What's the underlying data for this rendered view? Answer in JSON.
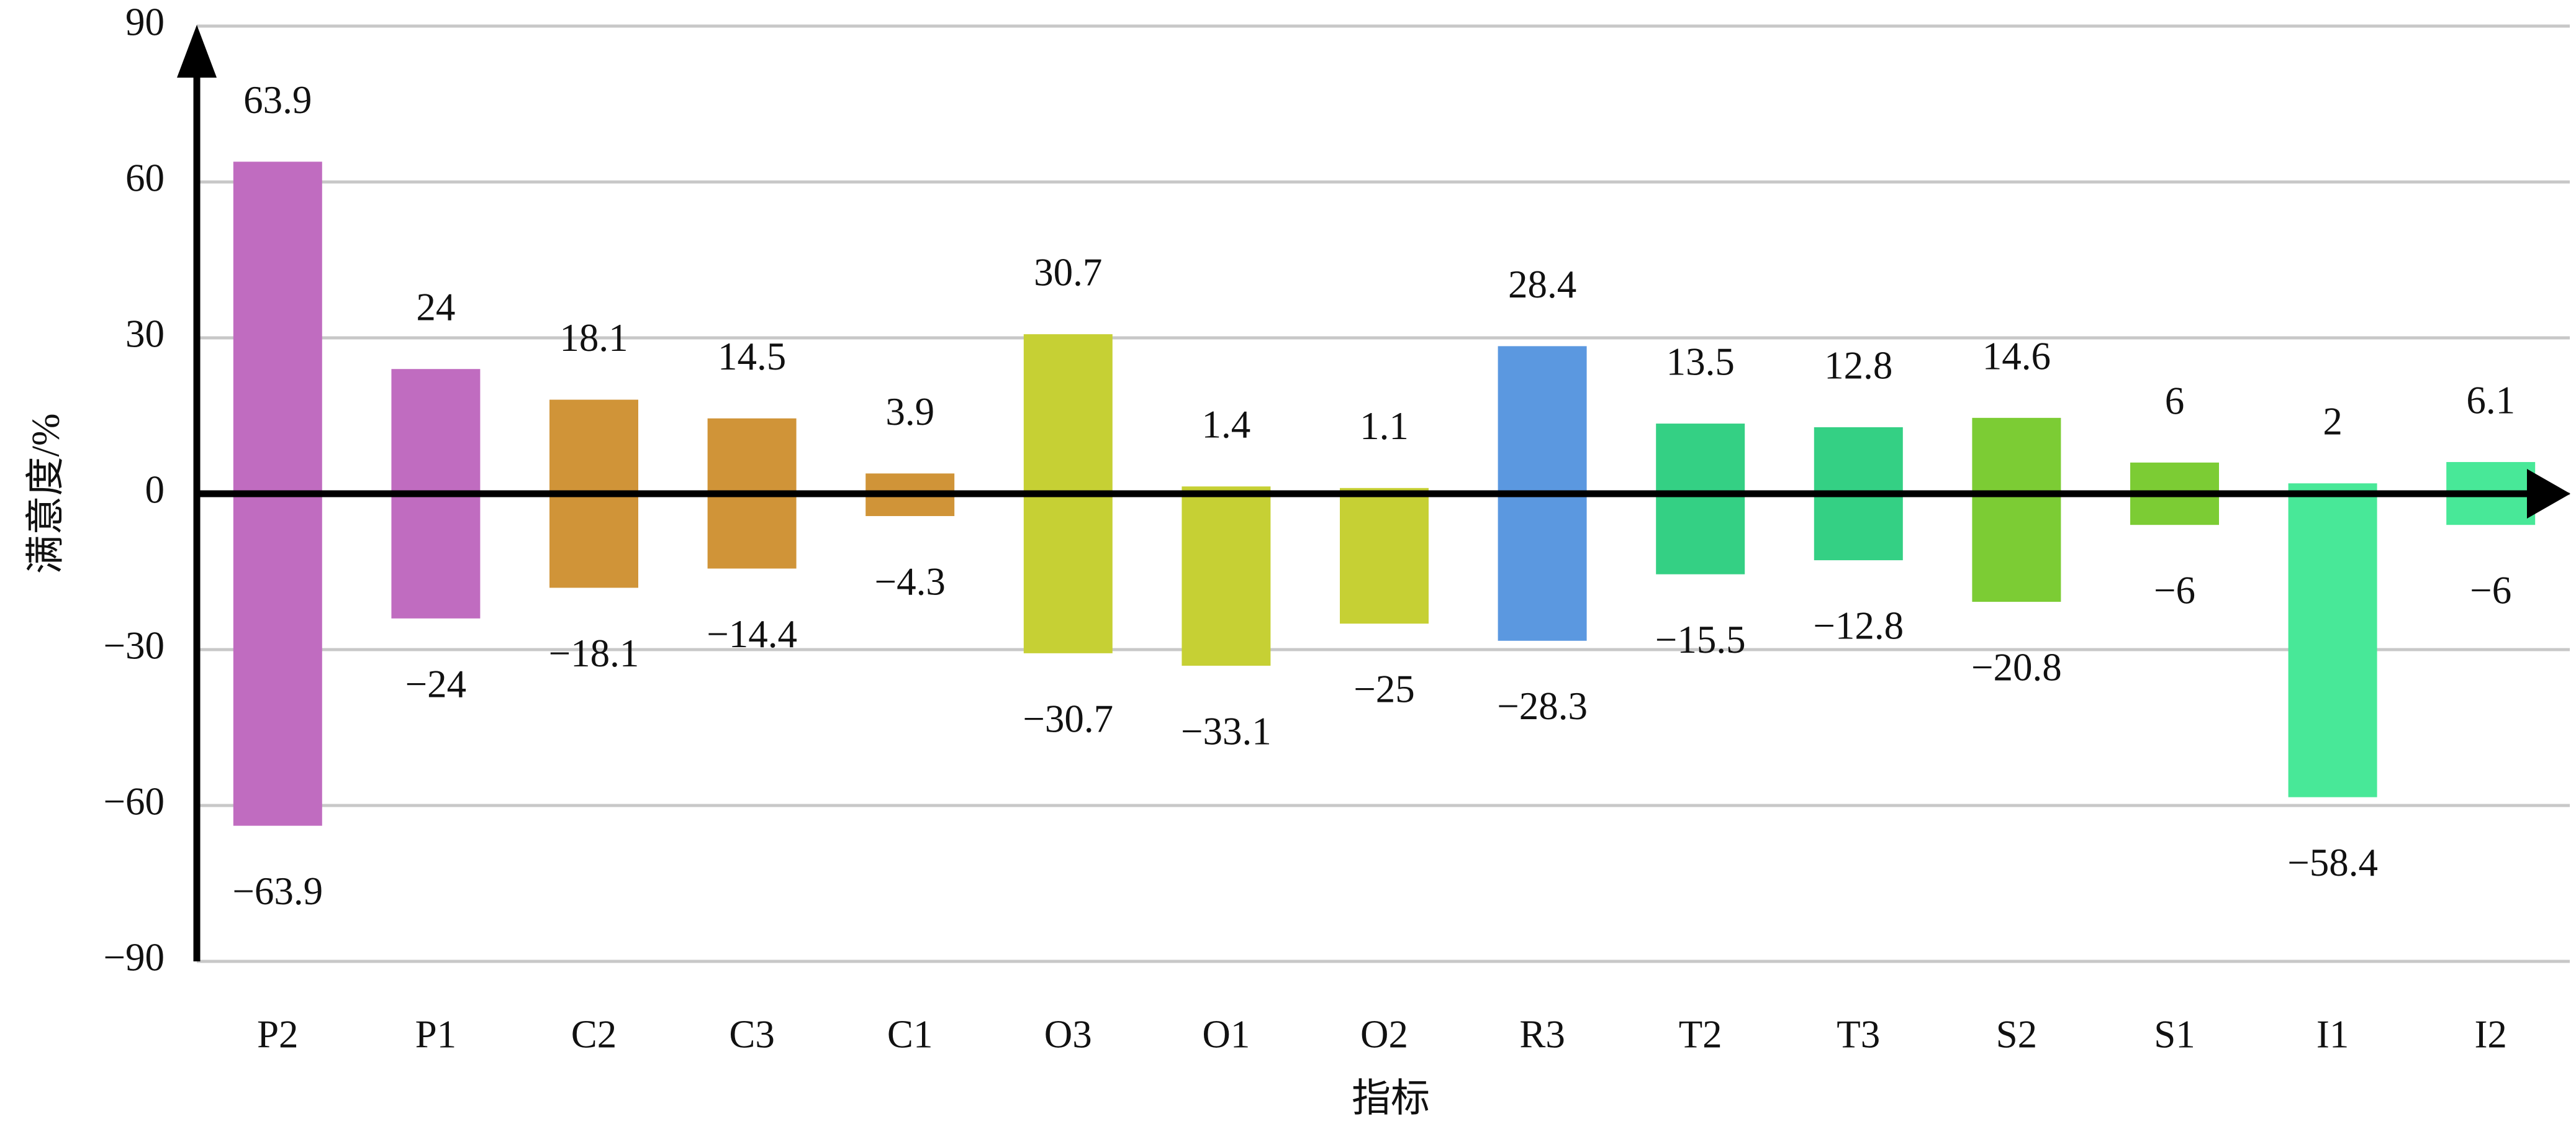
{
  "chart_data": {
    "type": "bar",
    "x_label": "指标",
    "y_label": "满意度/%",
    "categories": [
      "P2",
      "P1",
      "C2",
      "C3",
      "C1",
      "O3",
      "O1",
      "O2",
      "R3",
      "T2",
      "T3",
      "S2",
      "S1",
      "I1",
      "I2"
    ],
    "colors": [
      "#c06cc0",
      "#c06cc0",
      "#d09438",
      "#d09438",
      "#d09438",
      "#c6d034",
      "#c6d034",
      "#c6d034",
      "#5b98e0",
      "#34d084",
      "#34d084",
      "#7ccc34",
      "#7ccc34",
      "#48e898",
      "#48e898"
    ],
    "series": [
      {
        "values": [
          63.9,
          24,
          18.1,
          14.5,
          3.9,
          30.7,
          1.4,
          1.1,
          28.4,
          13.5,
          12.8,
          14.6,
          6,
          2,
          6.1
        ]
      },
      {
        "values": [
          -63.9,
          -24,
          -18.1,
          -14.4,
          -4.3,
          -30.7,
          -33.1,
          -25,
          -28.3,
          -15.5,
          -12.8,
          -20.8,
          -6,
          -58.4,
          -6
        ],
        "value_labels": [
          "−63.9",
          "−24",
          "−18.1",
          "−14.4",
          "−4.3",
          "−30.7",
          "−33.1",
          "−25",
          "−28.3",
          "−15.5",
          "−12.8",
          "−20.8",
          "−6",
          "−58.4",
          "−6"
        ]
      }
    ],
    "ylim": [
      -90,
      90
    ],
    "yticks": [
      {
        "value": -90,
        "label": "−90"
      },
      {
        "value": -60,
        "label": "−60"
      },
      {
        "value": -30,
        "label": "−30"
      },
      0,
      30,
      60,
      90
    ],
    "grid": true
  }
}
